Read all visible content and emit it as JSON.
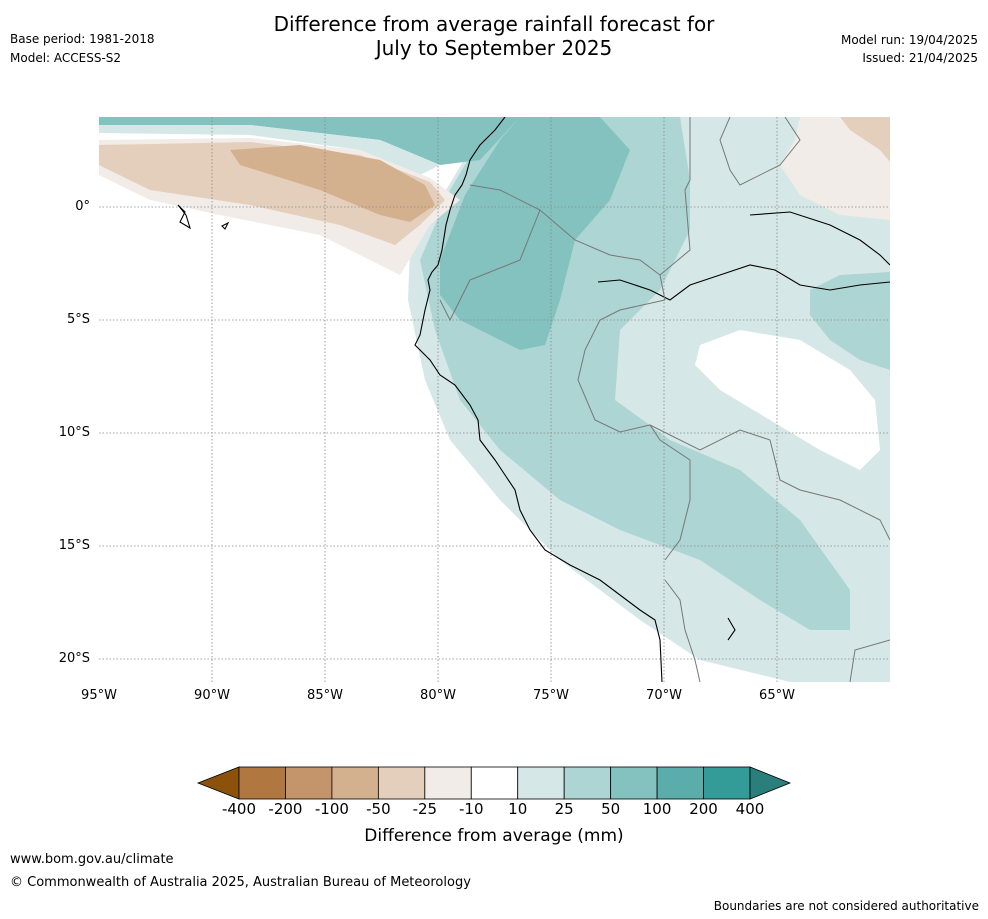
{
  "title_line1": "Difference from average rainfall forecast for",
  "title_line2": "July to September 2025",
  "base_period": "Base period: 1981-2018",
  "model": "Model: ACCESS-S2",
  "model_run": "Model run: 19/04/2025",
  "issued": "Issued: 21/04/2025",
  "lat_labels": [
    "0°",
    "5°S",
    "10°S",
    "15°S",
    "20°S"
  ],
  "lon_labels": [
    "95°W",
    "90°W",
    "85°W",
    "80°W",
    "75°W",
    "70°W",
    "65°W"
  ],
  "colorbar": {
    "label": "Difference from average (mm)",
    "ticks": [
      "-400",
      "-200",
      "-100",
      "-50",
      "-25",
      "-10",
      "10",
      "25",
      "50",
      "100",
      "200",
      "400"
    ],
    "colors": [
      "#8c510a",
      "#b07840",
      "#c4956a",
      "#d4b18e",
      "#e4cfbc",
      "#f1ece7",
      "#ffffff",
      "#d5e8e7",
      "#acd5d3",
      "#84c2c0",
      "#5badab",
      "#339b98",
      "#2a7f7c"
    ]
  },
  "footer": {
    "url": "www.bom.gov.au/climate",
    "copyright": "© Commonwealth of Australia 2025, Australian Bureau of Meteorology",
    "disclaimer": "Boundaries are not considered authoritative"
  }
}
